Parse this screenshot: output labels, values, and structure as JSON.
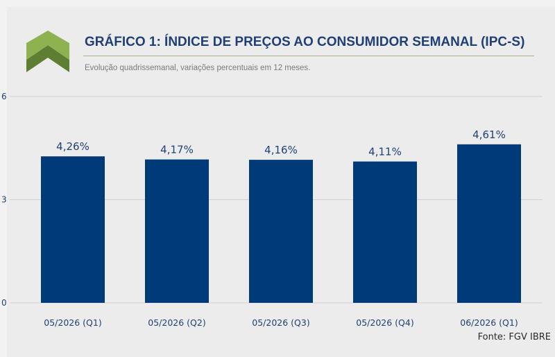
{
  "header": {
    "title": "GRÁFICO 1: ÍNDICE DE PREÇOS AO CONSUMIDOR SEMANAL (IPC-S)",
    "subtitle": "Evolução quadrissemanal, variações percentuais em 12 meses."
  },
  "footer": {
    "source": "Fonte: FGV IBRE"
  },
  "colors": {
    "bar": "#003a78",
    "logo_light": "#8db24f",
    "logo_dark": "#5e7f32",
    "title": "#1f3f75",
    "label": "#1f3f75",
    "grid": "#d0d0d0"
  },
  "chart_data": {
    "type": "bar",
    "title": "GRÁFICO 1: ÍNDICE DE PREÇOS AO CONSUMIDOR SEMANAL (IPC-S)",
    "subtitle": "Evolução quadrissemanal, variações percentuais em 12 meses.",
    "categories": [
      "05/2026 (Q1)",
      "05/2026 (Q2)",
      "05/2026 (Q3)",
      "05/2026 (Q4)",
      "06/2026 (Q1)"
    ],
    "values": [
      4.26,
      4.17,
      4.16,
      4.11,
      4.61
    ],
    "data_labels": [
      "4,26%",
      "4,17%",
      "4,16%",
      "4,11%",
      "4,61%"
    ],
    "yticks": [
      0,
      3,
      6
    ],
    "ylim": [
      0,
      6
    ],
    "grid": true,
    "xlabel": "",
    "ylabel": ""
  }
}
